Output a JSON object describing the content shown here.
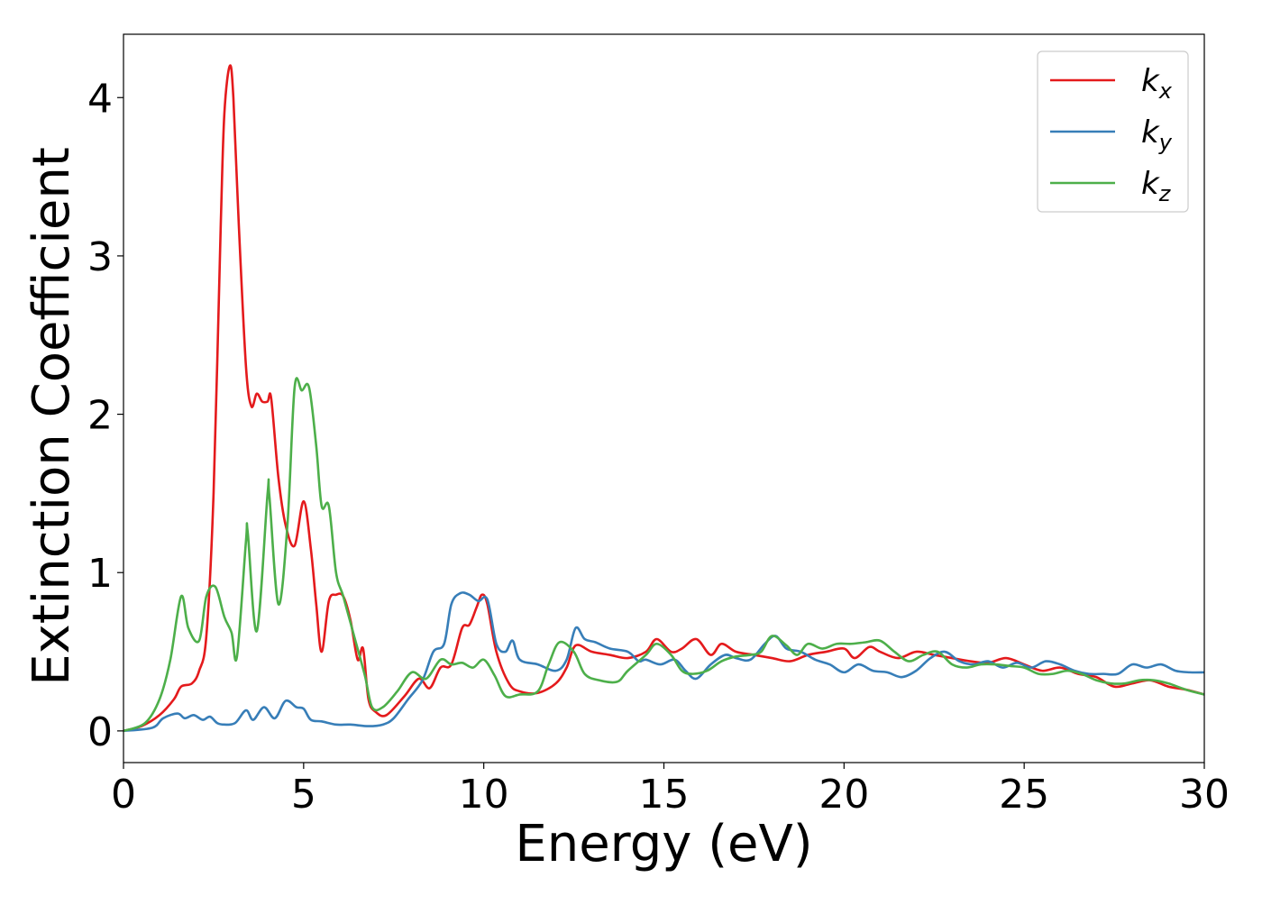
{
  "chart_data": {
    "type": "line",
    "title": "",
    "xlabel": "Energy (eV)",
    "ylabel": "Extinction Coefficient",
    "xlim": [
      0,
      30
    ],
    "ylim": [
      -0.2,
      4.4
    ],
    "xticks": [
      0,
      5,
      10,
      15,
      20,
      25,
      30
    ],
    "yticks": [
      0,
      1,
      2,
      3,
      4
    ],
    "xtick_labels": [
      "0",
      "5",
      "10",
      "15",
      "20",
      "25",
      "30"
    ],
    "ytick_labels": [
      "0",
      "1",
      "2",
      "3",
      "4"
    ],
    "grid": false,
    "legend_position": "top-right",
    "series": [
      {
        "name": "kx",
        "label_main": "k",
        "label_sub": "x",
        "color": "#e41a1c",
        "points": [
          [
            0,
            0
          ],
          [
            0.5,
            0.03
          ],
          [
            1,
            0.1
          ],
          [
            1.4,
            0.2
          ],
          [
            1.6,
            0.28
          ],
          [
            1.9,
            0.3
          ],
          [
            2.1,
            0.38
          ],
          [
            2.3,
            0.6
          ],
          [
            2.5,
            1.5
          ],
          [
            2.7,
            3.2
          ],
          [
            2.8,
            3.9
          ],
          [
            2.95,
            4.2
          ],
          [
            3.05,
            4.0
          ],
          [
            3.2,
            3.2
          ],
          [
            3.4,
            2.3
          ],
          [
            3.55,
            2.05
          ],
          [
            3.7,
            2.13
          ],
          [
            3.85,
            2.08
          ],
          [
            4.0,
            2.08
          ],
          [
            4.1,
            2.1
          ],
          [
            4.3,
            1.6
          ],
          [
            4.5,
            1.3
          ],
          [
            4.75,
            1.17
          ],
          [
            5.0,
            1.45
          ],
          [
            5.2,
            1.15
          ],
          [
            5.35,
            0.8
          ],
          [
            5.5,
            0.5
          ],
          [
            5.7,
            0.82
          ],
          [
            5.9,
            0.86
          ],
          [
            6.1,
            0.85
          ],
          [
            6.3,
            0.7
          ],
          [
            6.5,
            0.45
          ],
          [
            6.65,
            0.52
          ],
          [
            6.8,
            0.2
          ],
          [
            7.0,
            0.12
          ],
          [
            7.3,
            0.1
          ],
          [
            7.8,
            0.22
          ],
          [
            8.2,
            0.33
          ],
          [
            8.5,
            0.27
          ],
          [
            8.8,
            0.4
          ],
          [
            9.1,
            0.42
          ],
          [
            9.4,
            0.65
          ],
          [
            9.6,
            0.67
          ],
          [
            9.8,
            0.78
          ],
          [
            9.95,
            0.86
          ],
          [
            10.1,
            0.8
          ],
          [
            10.35,
            0.5
          ],
          [
            10.7,
            0.3
          ],
          [
            11.0,
            0.25
          ],
          [
            11.5,
            0.24
          ],
          [
            12.0,
            0.3
          ],
          [
            12.3,
            0.4
          ],
          [
            12.55,
            0.54
          ],
          [
            13.0,
            0.5
          ],
          [
            13.5,
            0.48
          ],
          [
            14.0,
            0.46
          ],
          [
            14.5,
            0.5
          ],
          [
            14.8,
            0.58
          ],
          [
            15.2,
            0.5
          ],
          [
            15.5,
            0.52
          ],
          [
            15.9,
            0.58
          ],
          [
            16.3,
            0.48
          ],
          [
            16.6,
            0.55
          ],
          [
            17.0,
            0.5
          ],
          [
            17.5,
            0.48
          ],
          [
            18.0,
            0.46
          ],
          [
            18.5,
            0.44
          ],
          [
            19.0,
            0.48
          ],
          [
            19.5,
            0.5
          ],
          [
            20.0,
            0.52
          ],
          [
            20.3,
            0.46
          ],
          [
            20.7,
            0.53
          ],
          [
            21.0,
            0.5
          ],
          [
            21.5,
            0.46
          ],
          [
            22.0,
            0.5
          ],
          [
            22.5,
            0.48
          ],
          [
            23.0,
            0.46
          ],
          [
            23.5,
            0.44
          ],
          [
            24.0,
            0.43
          ],
          [
            24.5,
            0.46
          ],
          [
            25.0,
            0.42
          ],
          [
            25.5,
            0.38
          ],
          [
            26.0,
            0.4
          ],
          [
            26.5,
            0.36
          ],
          [
            27.0,
            0.34
          ],
          [
            27.5,
            0.28
          ],
          [
            28.0,
            0.3
          ],
          [
            28.5,
            0.32
          ],
          [
            29.0,
            0.28
          ],
          [
            29.5,
            0.26
          ],
          [
            30.0,
            0.23
          ]
        ]
      },
      {
        "name": "ky",
        "label_main": "k",
        "label_sub": "y",
        "color": "#377eb8",
        "points": [
          [
            0,
            0
          ],
          [
            0.8,
            0.02
          ],
          [
            1.1,
            0.08
          ],
          [
            1.5,
            0.11
          ],
          [
            1.7,
            0.08
          ],
          [
            1.95,
            0.1
          ],
          [
            2.2,
            0.07
          ],
          [
            2.4,
            0.09
          ],
          [
            2.6,
            0.05
          ],
          [
            2.8,
            0.04
          ],
          [
            3.1,
            0.05
          ],
          [
            3.4,
            0.13
          ],
          [
            3.6,
            0.07
          ],
          [
            3.9,
            0.15
          ],
          [
            4.2,
            0.08
          ],
          [
            4.5,
            0.19
          ],
          [
            4.8,
            0.15
          ],
          [
            5.0,
            0.14
          ],
          [
            5.2,
            0.07
          ],
          [
            5.5,
            0.06
          ],
          [
            5.9,
            0.04
          ],
          [
            6.3,
            0.04
          ],
          [
            6.8,
            0.03
          ],
          [
            7.2,
            0.04
          ],
          [
            7.5,
            0.08
          ],
          [
            7.9,
            0.2
          ],
          [
            8.3,
            0.32
          ],
          [
            8.6,
            0.5
          ],
          [
            8.9,
            0.55
          ],
          [
            9.1,
            0.8
          ],
          [
            9.35,
            0.87
          ],
          [
            9.6,
            0.86
          ],
          [
            9.85,
            0.82
          ],
          [
            10.1,
            0.83
          ],
          [
            10.35,
            0.55
          ],
          [
            10.6,
            0.5
          ],
          [
            10.8,
            0.57
          ],
          [
            11.0,
            0.45
          ],
          [
            11.5,
            0.42
          ],
          [
            12.0,
            0.38
          ],
          [
            12.3,
            0.45
          ],
          [
            12.55,
            0.65
          ],
          [
            12.8,
            0.58
          ],
          [
            13.1,
            0.56
          ],
          [
            13.5,
            0.52
          ],
          [
            14.0,
            0.5
          ],
          [
            14.3,
            0.44
          ],
          [
            14.5,
            0.45
          ],
          [
            14.9,
            0.42
          ],
          [
            15.3,
            0.45
          ],
          [
            15.6,
            0.38
          ],
          [
            15.9,
            0.33
          ],
          [
            16.3,
            0.42
          ],
          [
            16.7,
            0.48
          ],
          [
            17.0,
            0.46
          ],
          [
            17.4,
            0.45
          ],
          [
            17.8,
            0.55
          ],
          [
            18.1,
            0.6
          ],
          [
            18.4,
            0.52
          ],
          [
            18.8,
            0.5
          ],
          [
            19.2,
            0.45
          ],
          [
            19.6,
            0.42
          ],
          [
            20.0,
            0.37
          ],
          [
            20.4,
            0.42
          ],
          [
            20.8,
            0.38
          ],
          [
            21.2,
            0.37
          ],
          [
            21.6,
            0.34
          ],
          [
            22.0,
            0.38
          ],
          [
            22.4,
            0.46
          ],
          [
            22.8,
            0.5
          ],
          [
            23.2,
            0.44
          ],
          [
            23.6,
            0.42
          ],
          [
            24.0,
            0.44
          ],
          [
            24.4,
            0.4
          ],
          [
            24.8,
            0.43
          ],
          [
            25.2,
            0.4
          ],
          [
            25.6,
            0.44
          ],
          [
            26.0,
            0.42
          ],
          [
            26.4,
            0.38
          ],
          [
            26.8,
            0.36
          ],
          [
            27.2,
            0.36
          ],
          [
            27.6,
            0.36
          ],
          [
            28.0,
            0.42
          ],
          [
            28.4,
            0.4
          ],
          [
            28.8,
            0.42
          ],
          [
            29.2,
            0.38
          ],
          [
            29.6,
            0.37
          ],
          [
            30.0,
            0.37
          ]
        ]
      },
      {
        "name": "kz",
        "label_main": "k",
        "label_sub": "z",
        "color": "#4daf4a",
        "points": [
          [
            0,
            0
          ],
          [
            0.6,
            0.05
          ],
          [
            1.0,
            0.2
          ],
          [
            1.3,
            0.45
          ],
          [
            1.6,
            0.85
          ],
          [
            1.8,
            0.65
          ],
          [
            2.1,
            0.57
          ],
          [
            2.3,
            0.85
          ],
          [
            2.55,
            0.91
          ],
          [
            2.8,
            0.72
          ],
          [
            3.0,
            0.62
          ],
          [
            3.15,
            0.47
          ],
          [
            3.4,
            1.2
          ],
          [
            3.45,
            1.25
          ],
          [
            3.7,
            0.63
          ],
          [
            4.0,
            1.5
          ],
          [
            4.05,
            1.48
          ],
          [
            4.3,
            0.8
          ],
          [
            4.55,
            1.3
          ],
          [
            4.75,
            2.17
          ],
          [
            4.95,
            2.15
          ],
          [
            5.15,
            2.17
          ],
          [
            5.35,
            1.8
          ],
          [
            5.5,
            1.42
          ],
          [
            5.7,
            1.42
          ],
          [
            5.9,
            1.0
          ],
          [
            6.1,
            0.85
          ],
          [
            6.4,
            0.6
          ],
          [
            6.7,
            0.35
          ],
          [
            6.9,
            0.15
          ],
          [
            7.2,
            0.15
          ],
          [
            7.6,
            0.25
          ],
          [
            8.0,
            0.37
          ],
          [
            8.4,
            0.33
          ],
          [
            8.8,
            0.45
          ],
          [
            9.1,
            0.42
          ],
          [
            9.4,
            0.43
          ],
          [
            9.7,
            0.4
          ],
          [
            10.0,
            0.45
          ],
          [
            10.3,
            0.35
          ],
          [
            10.6,
            0.22
          ],
          [
            11.0,
            0.23
          ],
          [
            11.5,
            0.25
          ],
          [
            11.8,
            0.42
          ],
          [
            12.1,
            0.56
          ],
          [
            12.5,
            0.5
          ],
          [
            12.8,
            0.36
          ],
          [
            13.2,
            0.32
          ],
          [
            13.7,
            0.31
          ],
          [
            14.0,
            0.38
          ],
          [
            14.5,
            0.48
          ],
          [
            14.8,
            0.55
          ],
          [
            15.2,
            0.48
          ],
          [
            15.5,
            0.38
          ],
          [
            15.8,
            0.36
          ],
          [
            16.2,
            0.38
          ],
          [
            16.6,
            0.44
          ],
          [
            17.0,
            0.47
          ],
          [
            17.4,
            0.48
          ],
          [
            17.7,
            0.5
          ],
          [
            18.0,
            0.6
          ],
          [
            18.4,
            0.54
          ],
          [
            18.7,
            0.48
          ],
          [
            19.0,
            0.55
          ],
          [
            19.4,
            0.52
          ],
          [
            19.8,
            0.55
          ],
          [
            20.2,
            0.55
          ],
          [
            20.6,
            0.56
          ],
          [
            21.0,
            0.57
          ],
          [
            21.4,
            0.5
          ],
          [
            21.8,
            0.44
          ],
          [
            22.2,
            0.48
          ],
          [
            22.6,
            0.5
          ],
          [
            23.0,
            0.42
          ],
          [
            23.4,
            0.4
          ],
          [
            23.8,
            0.42
          ],
          [
            24.2,
            0.42
          ],
          [
            24.6,
            0.41
          ],
          [
            25.0,
            0.4
          ],
          [
            25.4,
            0.36
          ],
          [
            25.8,
            0.36
          ],
          [
            26.2,
            0.38
          ],
          [
            26.6,
            0.36
          ],
          [
            27.0,
            0.32
          ],
          [
            27.4,
            0.3
          ],
          [
            27.8,
            0.3
          ],
          [
            28.2,
            0.32
          ],
          [
            28.6,
            0.32
          ],
          [
            29.0,
            0.3
          ],
          [
            29.5,
            0.26
          ],
          [
            30.0,
            0.23
          ]
        ]
      }
    ]
  }
}
